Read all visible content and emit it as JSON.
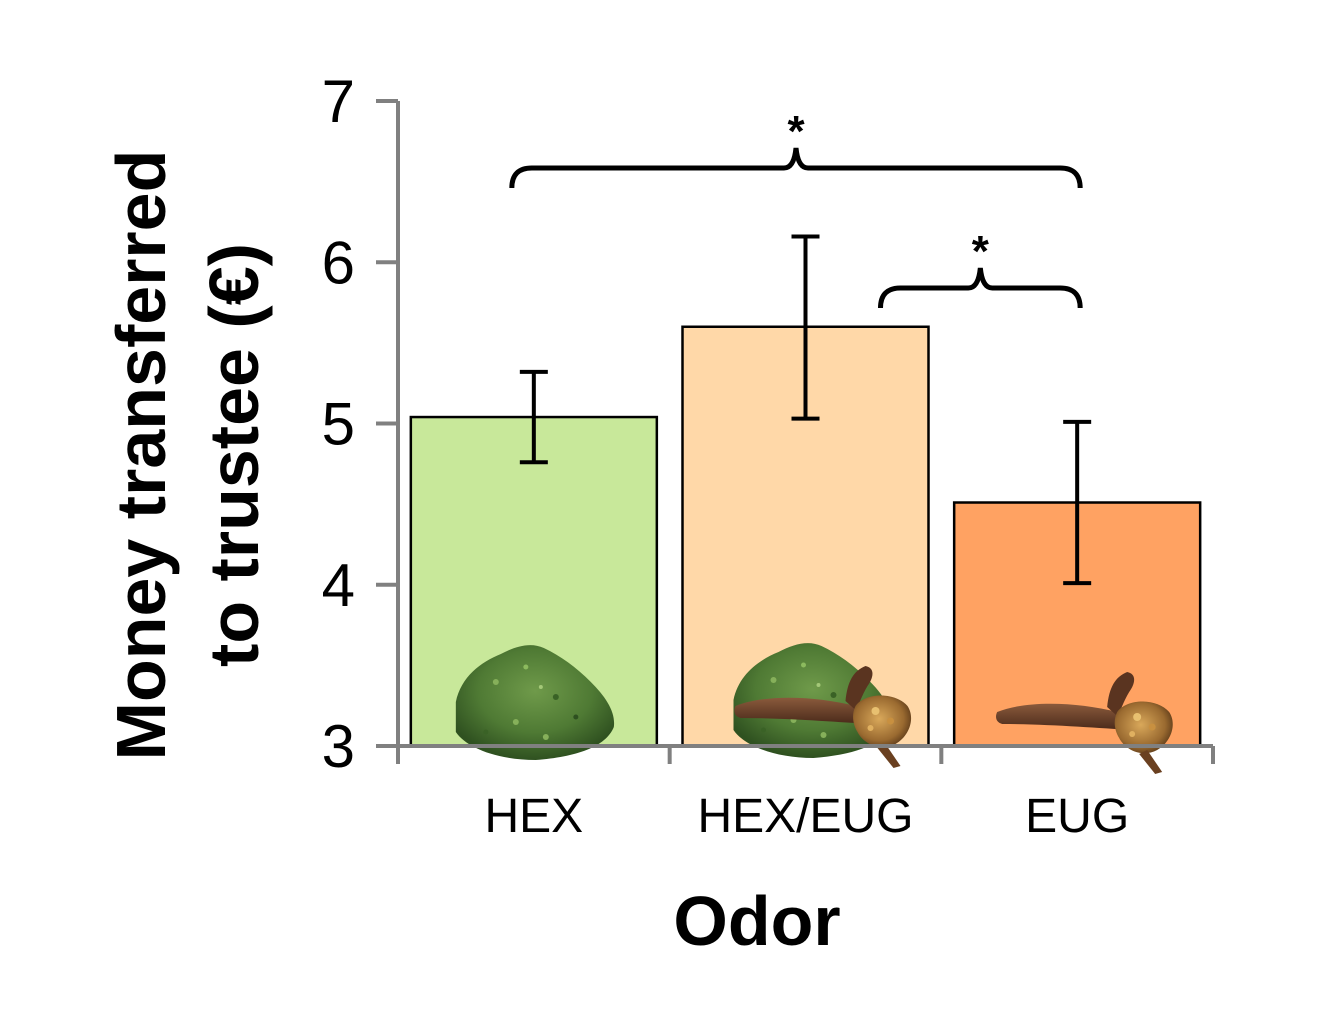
{
  "chart_data": {
    "type": "bar",
    "xlabel": "Odor",
    "ylabel_lines": [
      "Money transferred",
      "to trustee (€)"
    ],
    "categories": [
      "HEX",
      "HEX/EUG",
      "EUG"
    ],
    "values": [
      5.04,
      5.6,
      4.51
    ],
    "error_low": [
      4.76,
      5.03,
      4.01
    ],
    "error_high": [
      5.32,
      6.16,
      5.01
    ],
    "ylim": [
      3,
      7
    ],
    "yticks": [
      "3",
      "4",
      "5",
      "6",
      "7"
    ],
    "grid": false,
    "legend": "none",
    "bar_colors": [
      "#c8e89a",
      "#ffd8a8",
      "#ffa262"
    ],
    "bar_icons": [
      "green-powder-icon",
      "powder-and-clove-icon",
      "clove-icon"
    ],
    "significance": [
      {
        "from": "HEX",
        "to": "EUG",
        "label": "*"
      },
      {
        "from": "HEX/EUG",
        "to": "EUG",
        "label": "*"
      }
    ]
  },
  "colors": {
    "axis": "#808080",
    "bar_outline": "#000000",
    "error_bar": "#000000"
  }
}
